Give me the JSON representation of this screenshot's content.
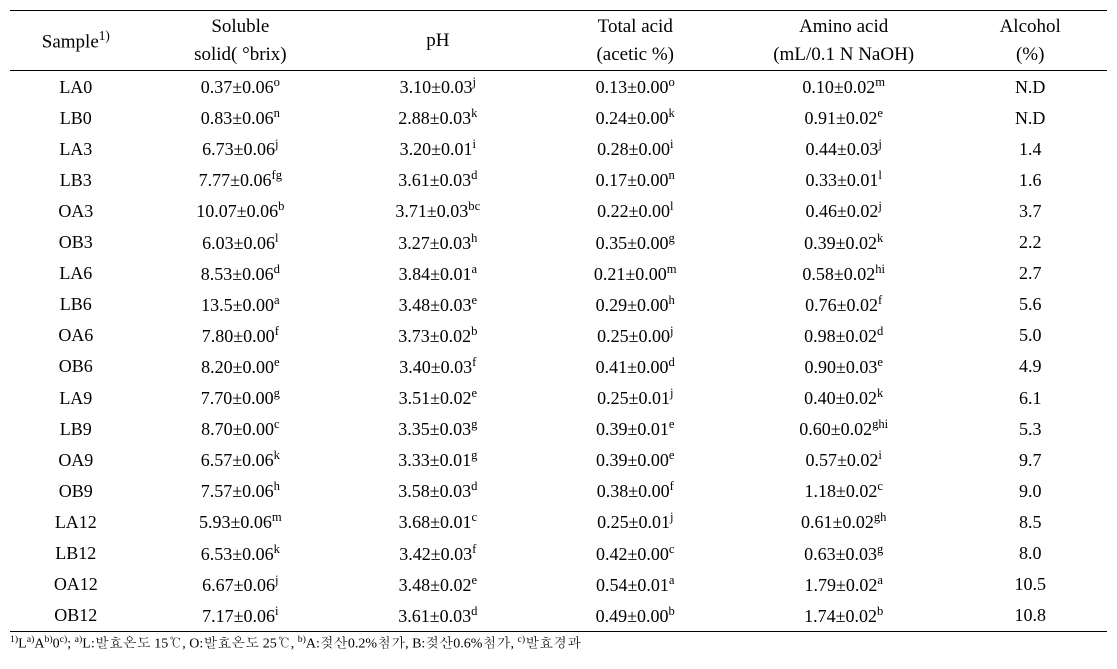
{
  "table": {
    "font_family": "Times New Roman / Batang serif",
    "border_color": "#000000",
    "background_color": "#ffffff",
    "text_color": "#000000",
    "header_fontsize_pt": 14,
    "body_fontsize_pt": 13,
    "footnote_fontsize_pt": 10,
    "columns": [
      {
        "key": "sample",
        "label": "Sample",
        "sup": "1)",
        "sub": "",
        "align": "center"
      },
      {
        "key": "soluble",
        "label": "Soluble",
        "sup": "",
        "sub": "solid( °brix)",
        "align": "center"
      },
      {
        "key": "ph",
        "label": "pH",
        "sup": "",
        "sub": "",
        "align": "center"
      },
      {
        "key": "total_acid",
        "label": "Total acid",
        "sup": "",
        "sub": "(acetic %)",
        "align": "center"
      },
      {
        "key": "amino_acid",
        "label": "Amino acid",
        "sup": "",
        "sub": "(mL/0.1 N NaOH)",
        "align": "center"
      },
      {
        "key": "alcohol",
        "label": "Alcohol",
        "sup": "",
        "sub": "(%)",
        "align": "center"
      }
    ],
    "rows": [
      {
        "sample": "LA0",
        "ss": {
          "v": "0.37±0.06",
          "s": "o"
        },
        "ph": {
          "v": "3.10±0.03",
          "s": "j"
        },
        "ta": {
          "v": "0.13±0.00",
          "s": "o"
        },
        "aa": {
          "v": "0.10±0.02",
          "s": "m"
        },
        "al": "N.D"
      },
      {
        "sample": "LB0",
        "ss": {
          "v": "0.83±0.06",
          "s": "n"
        },
        "ph": {
          "v": "2.88±0.03",
          "s": "k"
        },
        "ta": {
          "v": "0.24±0.00",
          "s": "k"
        },
        "aa": {
          "v": "0.91±0.02",
          "s": "e"
        },
        "al": "N.D"
      },
      {
        "sample": "LA3",
        "ss": {
          "v": "6.73±0.06",
          "s": "j"
        },
        "ph": {
          "v": "3.20±0.01",
          "s": "i"
        },
        "ta": {
          "v": "0.28±0.00",
          "s": "i"
        },
        "aa": {
          "v": "0.44±0.03",
          "s": "j"
        },
        "al": "1.4"
      },
      {
        "sample": "LB3",
        "ss": {
          "v": "7.77±0.06",
          "s": "fg"
        },
        "ph": {
          "v": "3.61±0.03",
          "s": "d"
        },
        "ta": {
          "v": "0.17±0.00",
          "s": "n"
        },
        "aa": {
          "v": "0.33±0.01",
          "s": "l"
        },
        "al": "1.6"
      },
      {
        "sample": "OA3",
        "ss": {
          "v": "10.07±0.06",
          "s": "b"
        },
        "ph": {
          "v": "3.71±0.03",
          "s": "bc"
        },
        "ta": {
          "v": "0.22±0.00",
          "s": "l"
        },
        "aa": {
          "v": "0.46±0.02",
          "s": "j"
        },
        "al": "3.7"
      },
      {
        "sample": "OB3",
        "ss": {
          "v": "6.03±0.06",
          "s": "l"
        },
        "ph": {
          "v": "3.27±0.03",
          "s": "h"
        },
        "ta": {
          "v": "0.35±0.00",
          "s": "g"
        },
        "aa": {
          "v": "0.39±0.02",
          "s": "k"
        },
        "al": "2.2"
      },
      {
        "sample": "LA6",
        "ss": {
          "v": "8.53±0.06",
          "s": "d"
        },
        "ph": {
          "v": "3.84±0.01",
          "s": "a"
        },
        "ta": {
          "v": "0.21±0.00",
          "s": "m"
        },
        "aa": {
          "v": "0.58±0.02",
          "s": "hi"
        },
        "al": "2.7"
      },
      {
        "sample": "LB6",
        "ss": {
          "v": "13.5±0.00",
          "s": "a"
        },
        "ph": {
          "v": "3.48±0.03",
          "s": "e"
        },
        "ta": {
          "v": "0.29±0.00",
          "s": "h"
        },
        "aa": {
          "v": "0.76±0.02",
          "s": "f"
        },
        "al": "5.6"
      },
      {
        "sample": "OA6",
        "ss": {
          "v": "7.80±0.00",
          "s": "f"
        },
        "ph": {
          "v": "3.73±0.02",
          "s": "b"
        },
        "ta": {
          "v": "0.25±0.00",
          "s": "j"
        },
        "aa": {
          "v": "0.98±0.02",
          "s": "d"
        },
        "al": "5.0"
      },
      {
        "sample": "OB6",
        "ss": {
          "v": "8.20±0.00",
          "s": "e"
        },
        "ph": {
          "v": "3.40±0.03",
          "s": "f"
        },
        "ta": {
          "v": "0.41±0.00",
          "s": "d"
        },
        "aa": {
          "v": "0.90±0.03",
          "s": "e"
        },
        "al": "4.9"
      },
      {
        "sample": "LA9",
        "ss": {
          "v": "7.70±0.00",
          "s": "g"
        },
        "ph": {
          "v": "3.51±0.02",
          "s": "e"
        },
        "ta": {
          "v": "0.25±0.01",
          "s": "j"
        },
        "aa": {
          "v": "0.40±0.02",
          "s": "k"
        },
        "al": "6.1"
      },
      {
        "sample": "LB9",
        "ss": {
          "v": "8.70±0.00",
          "s": "c"
        },
        "ph": {
          "v": "3.35±0.03",
          "s": "g"
        },
        "ta": {
          "v": "0.39±0.01",
          "s": "e"
        },
        "aa": {
          "v": "0.60±0.02",
          "s": "ghi"
        },
        "al": "5.3"
      },
      {
        "sample": "OA9",
        "ss": {
          "v": "6.57±0.06",
          "s": "k"
        },
        "ph": {
          "v": "3.33±0.01",
          "s": "g"
        },
        "ta": {
          "v": "0.39±0.00",
          "s": "e"
        },
        "aa": {
          "v": "0.57±0.02",
          "s": "i"
        },
        "al": "9.7"
      },
      {
        "sample": "OB9",
        "ss": {
          "v": "7.57±0.06",
          "s": "h"
        },
        "ph": {
          "v": "3.58±0.03",
          "s": "d"
        },
        "ta": {
          "v": "0.38±0.00",
          "s": "f"
        },
        "aa": {
          "v": "1.18±0.02",
          "s": "c"
        },
        "al": "9.0"
      },
      {
        "sample": "LA12",
        "ss": {
          "v": "5.93±0.06",
          "s": "m"
        },
        "ph": {
          "v": "3.68±0.01",
          "s": "c"
        },
        "ta": {
          "v": "0.25±0.01",
          "s": "j"
        },
        "aa": {
          "v": "0.61±0.02",
          "s": "gh"
        },
        "al": "8.5"
      },
      {
        "sample": "LB12",
        "ss": {
          "v": "6.53±0.06",
          "s": "k"
        },
        "ph": {
          "v": "3.42±0.03",
          "s": "f"
        },
        "ta": {
          "v": "0.42±0.00",
          "s": "c"
        },
        "aa": {
          "v": "0.63±0.03",
          "s": "g"
        },
        "al": "8.0"
      },
      {
        "sample": "OA12",
        "ss": {
          "v": "6.67±0.06",
          "s": "j"
        },
        "ph": {
          "v": "3.48±0.02",
          "s": "e"
        },
        "ta": {
          "v": "0.54±0.01",
          "s": "a"
        },
        "aa": {
          "v": "1.79±0.02",
          "s": "a"
        },
        "al": "10.5"
      },
      {
        "sample": "OB12",
        "ss": {
          "v": "7.17±0.06",
          "s": "i"
        },
        "ph": {
          "v": "3.61±0.03",
          "s": "d"
        },
        "ta": {
          "v": "0.49±0.00",
          "s": "b"
        },
        "aa": {
          "v": "1.74±0.02",
          "s": "b"
        },
        "al": "10.8"
      }
    ],
    "footnote": {
      "prefix_sup": "1)",
      "segments": [
        {
          "text": "L",
          "sup": "a)"
        },
        {
          "text": "A",
          "sup": "b)"
        },
        {
          "text": "0",
          "sup": "c)"
        },
        {
          "text": "; "
        },
        {
          "sup": "a)",
          "text": "L:발효온도 15℃, O:발효온도 25℃, "
        },
        {
          "sup": "b)",
          "text": "A:젖산0.2%첨가, B:젖산0.6%첨가, "
        },
        {
          "sup": "c)",
          "text": "발효경과"
        }
      ]
    }
  }
}
